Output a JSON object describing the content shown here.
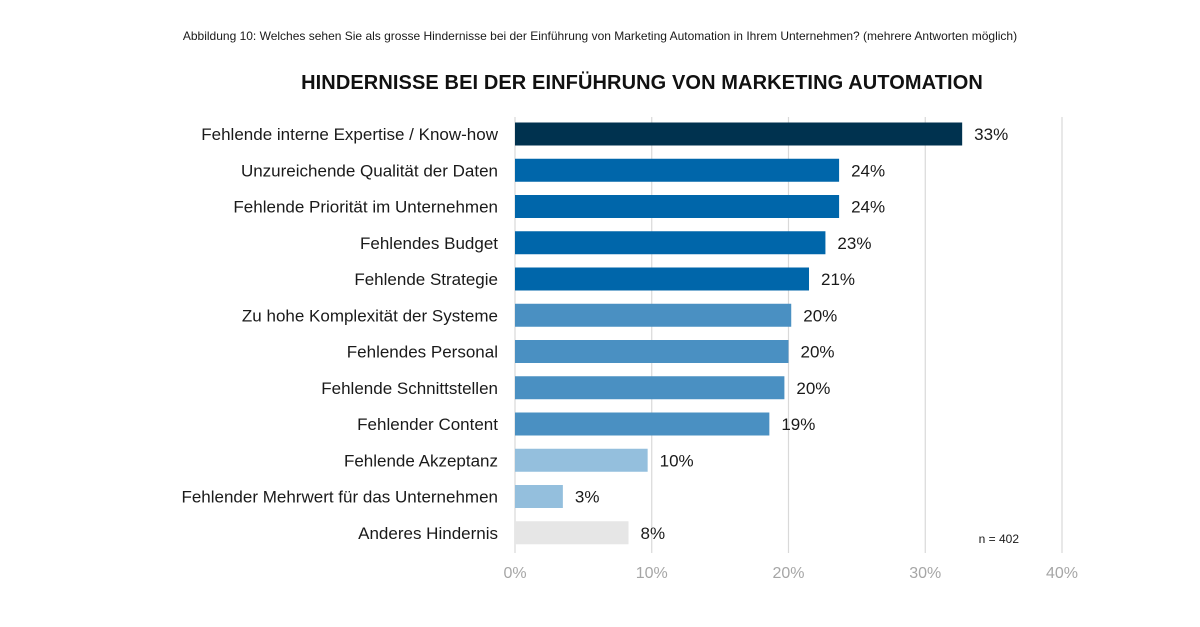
{
  "figure_caption": "Abbildung 10: Welches sehen Sie als grosse Hindernisse bei der Einführung von Marketing Automation in Ihrem Unternehmen? (mehrere Antworten möglich)",
  "colors": {
    "top": "#00324f",
    "dark": "#0066aa",
    "medium": "#4a90c2",
    "light": "#94bfdd",
    "other": "#e6e6e6",
    "grid": "#d9d9d9"
  },
  "chart_data": {
    "type": "bar",
    "orientation": "horizontal",
    "title": "HINDERNISSE BEI DER EINFÜHRUNG VON MARKETING AUTOMATION",
    "xlabel": "",
    "ylabel": "",
    "categories": [
      "Fehlende interne Expertise / Know-how",
      "Unzureichende Qualität der Daten",
      "Fehlende Priorität im Unternehmen",
      "Fehlendes Budget",
      "Fehlende Strategie",
      "Zu hohe Komplexität der Systeme",
      "Fehlendes Personal",
      "Fehlende Schnittstellen",
      "Fehlender Content",
      "Fehlende Akzeptanz",
      "Fehlender Mehrwert für das Unternehmen",
      "Anderes Hindernis"
    ],
    "values": [
      32.7,
      23.7,
      23.7,
      22.7,
      21.5,
      20.2,
      20.0,
      19.7,
      18.6,
      9.7,
      3.5,
      8.3
    ],
    "value_labels": [
      "33%",
      "24%",
      "24%",
      "23%",
      "21%",
      "20%",
      "20%",
      "20%",
      "19%",
      "10%",
      "3%",
      "8%"
    ],
    "color_groups": [
      "top",
      "dark",
      "dark",
      "dark",
      "dark",
      "medium",
      "medium",
      "medium",
      "medium",
      "light",
      "light",
      "other"
    ],
    "xlim": [
      0,
      40
    ],
    "xticks": [
      0,
      10,
      20,
      30,
      40
    ],
    "xtick_labels": [
      "0%",
      "10%",
      "20%",
      "30%",
      "40%"
    ],
    "grid": true,
    "note": "n = 402"
  }
}
